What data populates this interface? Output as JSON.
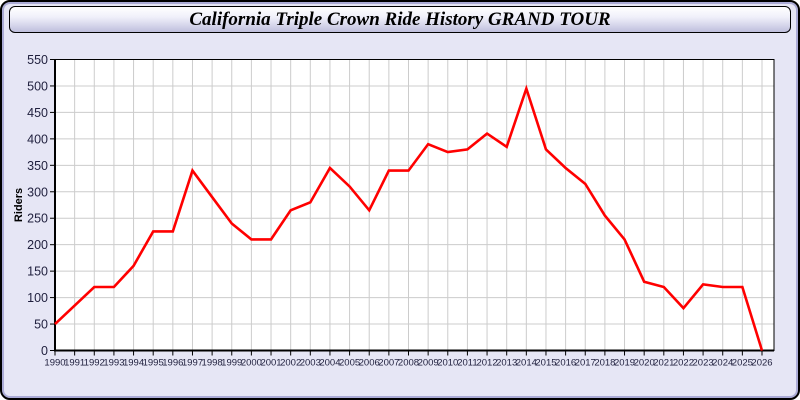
{
  "window": {
    "title": "California Triple Crown Ride History GRAND TOUR"
  },
  "colors": {
    "panel_bg": "#E6E6F5",
    "panel_border": "#000000",
    "panel_inner_ridge": "#ABABD6",
    "header_gradient_top": "#FFFFFF",
    "header_gradient_bottom": "#BEBEDC",
    "plot_bg": "#FFFFFF",
    "grid": "#CCCCCC",
    "axis": "#000000",
    "tick_label": "#1F1F3D",
    "series_line": "#FF0000"
  },
  "chart_data": {
    "type": "line",
    "title": "California Triple Crown Ride History GRAND TOUR",
    "xlabel": "",
    "ylabel": "Riders",
    "x": [
      1990,
      1991,
      1992,
      1993,
      1994,
      1995,
      1996,
      1997,
      1998,
      1999,
      2000,
      2001,
      2002,
      2003,
      2004,
      2005,
      2006,
      2007,
      2008,
      2009,
      2010,
      2011,
      2012,
      2013,
      2014,
      2015,
      2016,
      2017,
      2018,
      2019,
      2020,
      2021,
      2022,
      2023,
      2024,
      2025,
      2026
    ],
    "series": [
      {
        "name": "Riders",
        "color": "#FF0000",
        "values": [
          50,
          85,
          120,
          120,
          160,
          225,
          225,
          340,
          290,
          240,
          210,
          210,
          265,
          280,
          345,
          310,
          265,
          340,
          340,
          390,
          375,
          380,
          410,
          385,
          495,
          380,
          345,
          315,
          255,
          210,
          130,
          120,
          80,
          125,
          120,
          120,
          0
        ]
      }
    ],
    "ylim": [
      0,
      550
    ],
    "ytick_step": 50,
    "grid": true,
    "legend_position": "none"
  }
}
